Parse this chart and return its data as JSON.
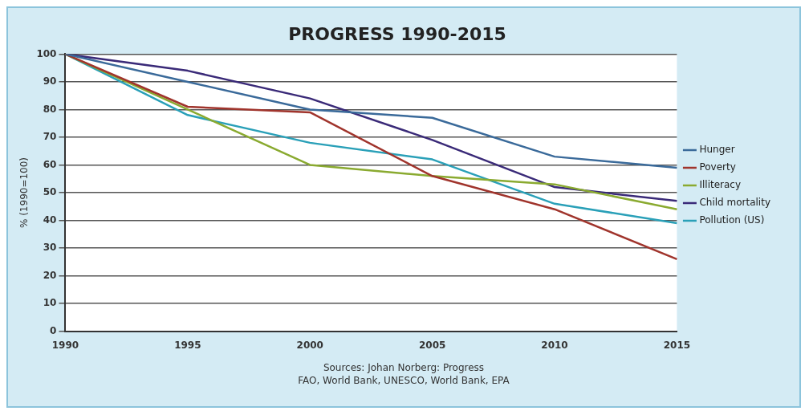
{
  "chart_data": {
    "type": "line",
    "title": "PROGRESS 1990-2015",
    "ylabel": "% (1990=100)",
    "categories": [
      "1990",
      "1995",
      "2000",
      "2005",
      "2010",
      "2015"
    ],
    "series": [
      {
        "name": "Hunger",
        "color": "#3a6a9a",
        "values": [
          100,
          90,
          80,
          77,
          63,
          59
        ]
      },
      {
        "name": "Poverty",
        "color": "#a0342c",
        "values": [
          100,
          81,
          79,
          56,
          44,
          26
        ]
      },
      {
        "name": "Illiteracy",
        "color": "#8aaa30",
        "values": [
          100,
          80,
          60,
          56,
          53,
          44
        ]
      },
      {
        "name": "Child mortality",
        "color": "#3a2a78",
        "values": [
          100,
          94,
          84,
          69,
          52,
          47
        ]
      },
      {
        "name": "Pollution (US)",
        "color": "#2aa0b8",
        "values": [
          100,
          78,
          68,
          62,
          46,
          39
        ]
      }
    ],
    "ylim": [
      0,
      100
    ],
    "yticks": [
      0,
      10,
      20,
      30,
      40,
      50,
      60,
      70,
      80,
      90,
      100
    ],
    "grid": "y",
    "legend": "right",
    "marker": "none",
    "line_style": "solid",
    "annotations": [
      "Sources: Johan Norberg: Progress",
      "FAO, World Bank, UNESCO, World Bank, EPA"
    ]
  }
}
